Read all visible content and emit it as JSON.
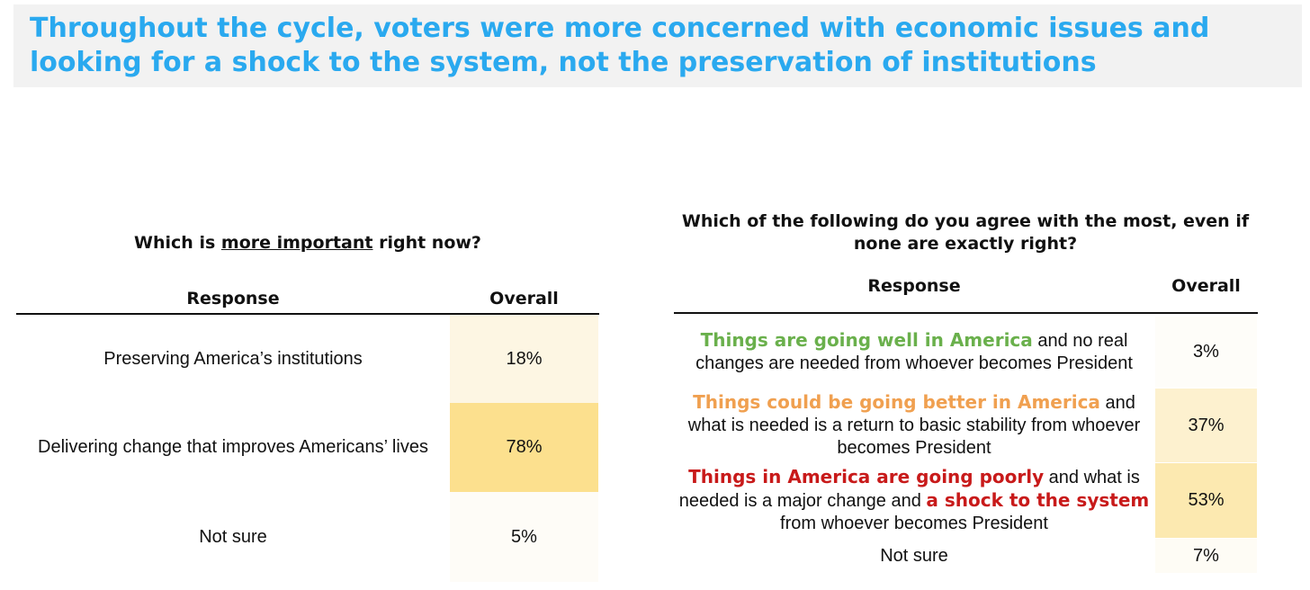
{
  "headline": "Throughout the cycle, voters were more concerned with economic issues and looking for a shock to the system, not the preservation of institutions",
  "colors": {
    "headline": "#2aa9ef",
    "header_bg": "#f2f2f2",
    "green": "#6ab04c",
    "orange": "#f0a050",
    "red": "#c81a1a"
  },
  "left_table": {
    "question_pre": "Which is ",
    "question_underlined": "more important",
    "question_post": " right now?",
    "col_response": "Response",
    "col_overall": "Overall",
    "rows": [
      {
        "response": "Preserving America’s institutions",
        "overall": "18%",
        "fill": "#fdf6e3"
      },
      {
        "response": "Delivering change that improves Americans’ lives",
        "overall": "78%",
        "fill": "#fce08e"
      },
      {
        "response": "Not sure",
        "overall": "5%",
        "fill": "#fefcf7"
      }
    ]
  },
  "right_table": {
    "question": "Which of the following do you agree with the most, even if none are exactly right?",
    "col_response": "Response",
    "col_overall": "Overall",
    "rows": [
      {
        "highlight": "Things are going well in America",
        "rest": " and no real changes are needed from whoever becomes President",
        "overall": "3%",
        "fill": "#fefdf9"
      },
      {
        "highlight": "Things could be going better in America",
        "rest": " and what is needed is a return to basic stability from whoever becomes President",
        "overall": "37%",
        "fill": "#fdf1cf"
      },
      {
        "highlight": "Things in America are going poorly",
        "mid": " and what is needed is a major change and ",
        "highlight2": "a shock to the system",
        "rest": " from whoever becomes President",
        "overall": "53%",
        "fill": "#fce9b0"
      },
      {
        "response": "Not sure",
        "overall": "7%",
        "fill": "#fefcf5"
      }
    ]
  }
}
